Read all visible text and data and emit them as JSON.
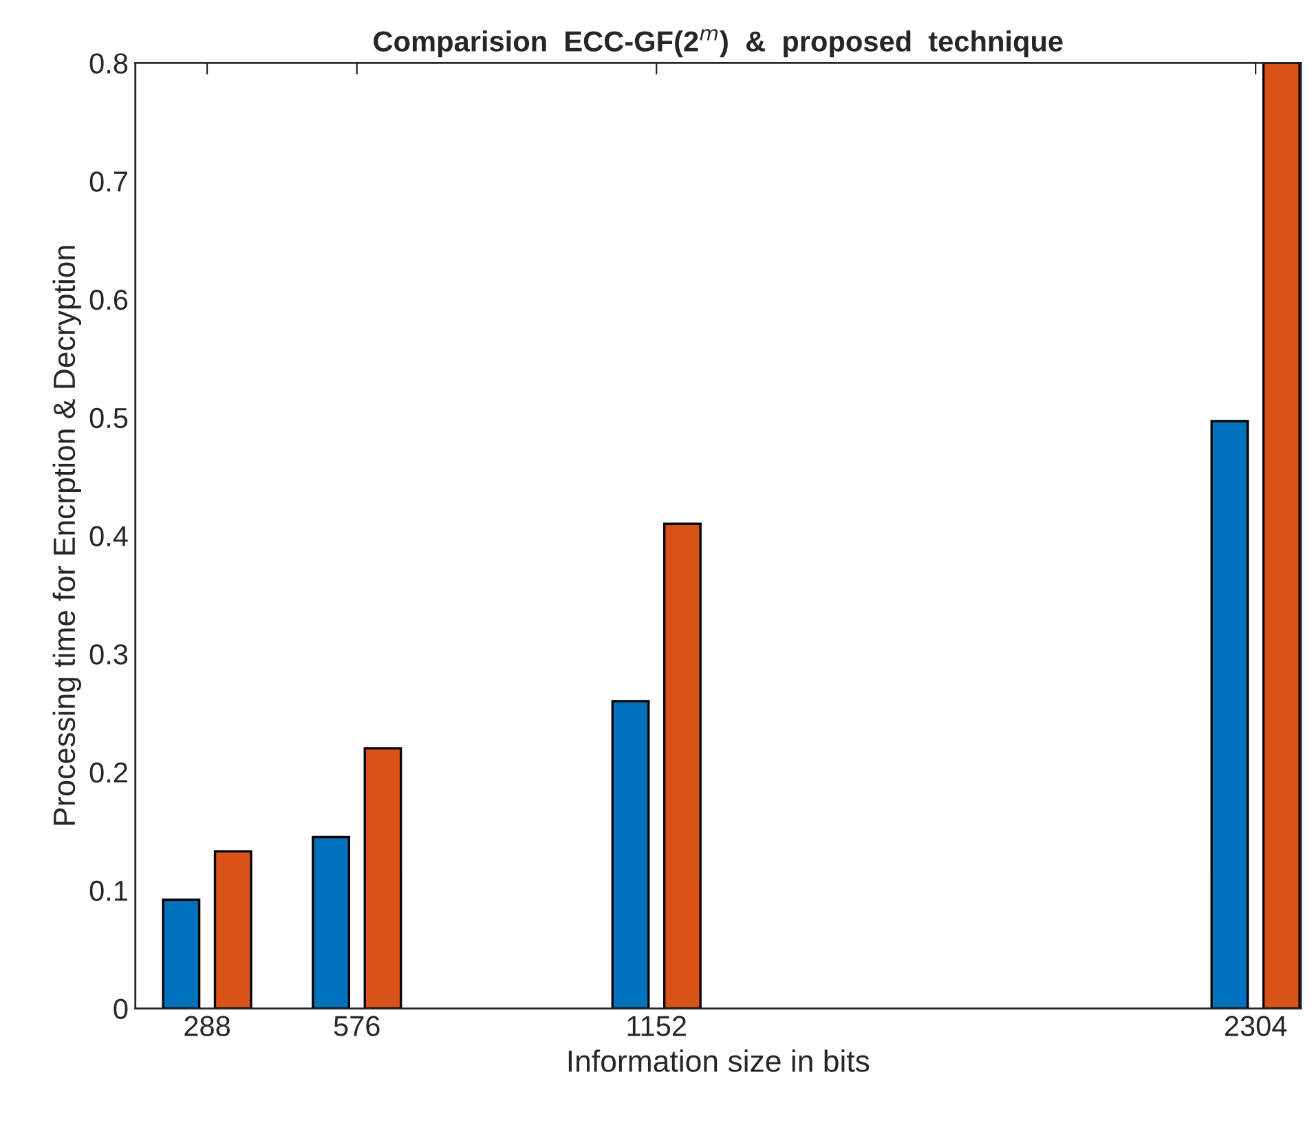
{
  "chart_data": {
    "type": "bar",
    "title": "Comparision  ECC-GF(2$^{m}$)  &  proposed  technique",
    "xlabel": "Information size in bits",
    "ylabel": "Processing time for Encrption & Decryption",
    "x": [
      288,
      576,
      1152,
      2304
    ],
    "series": [
      {
        "color": "#0072bd",
        "values": [
          0.092,
          0.145,
          0.26,
          0.497
        ]
      },
      {
        "color": "#d95319",
        "values": [
          0.133,
          0.22,
          0.41,
          0.8
        ]
      }
    ],
    "xlim": [
      150,
      2391
    ],
    "xticks": [
      288,
      576,
      1152,
      2304
    ],
    "ylim": [
      0,
      0.8
    ],
    "yticks": [
      0,
      0.1,
      0.2,
      0.3,
      0.4,
      0.5,
      0.6,
      0.7,
      0.8
    ],
    "grid": false,
    "legend": false
  }
}
